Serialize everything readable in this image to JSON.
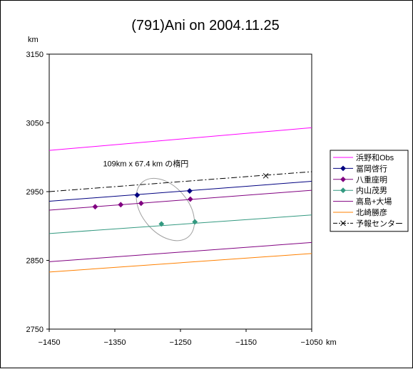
{
  "chart_data": {
    "type": "line",
    "title": "(791)Ani on 2004.11.25",
    "xlabel": "km",
    "ylabel": "km",
    "xlim": [
      -1450,
      -1050
    ],
    "ylim": [
      2750,
      3150
    ],
    "xticks": [
      -1450,
      -1350,
      -1250,
      -1150,
      -1050
    ],
    "yticks": [
      2750,
      2850,
      2950,
      3050,
      3150
    ],
    "xtick_labels": [
      "−1450",
      "−1350",
      "−1250",
      "−1150",
      "−1050"
    ],
    "ytick_labels": [
      "2750",
      "2850",
      "2950",
      "3050",
      "3150"
    ],
    "grid": false,
    "legend_position": "right",
    "annotation": "109km x 67.4 km の楕円",
    "ellipse": {
      "center": [
        -1273,
        2924
      ],
      "semi_axis_a_km": 54.5,
      "semi_axis_b_km": 33.7,
      "rotation_deg": -50,
      "color": "#a0a0a0"
    },
    "series": [
      {
        "name": "浜野和Obs",
        "color": "#ff00ff",
        "marker": "none",
        "style": "solid",
        "x": [
          -1450,
          -1050
        ],
        "y": [
          3010,
          3043
        ]
      },
      {
        "name": "冨岡啓行",
        "color": "#000080",
        "marker": "diamond",
        "style": "solid",
        "x": [
          -1450,
          -1050
        ],
        "y": [
          2936,
          2965
        ],
        "markers": [
          [
            -1316,
            2945
          ],
          [
            -1236,
            2951
          ]
        ]
      },
      {
        "name": "八重座明",
        "color": "#800080",
        "marker": "diamond",
        "style": "solid",
        "x": [
          -1450,
          -1050
        ],
        "y": [
          2923,
          2952
        ],
        "markers": [
          [
            -1380,
            2928
          ],
          [
            -1341,
            2931
          ],
          [
            -1310,
            2933
          ],
          [
            -1235,
            2939
          ]
        ]
      },
      {
        "name": "内山茂男",
        "color": "#339980",
        "marker": "diamond",
        "style": "solid",
        "x": [
          -1450,
          -1050
        ],
        "y": [
          2889,
          2916
        ],
        "markers": [
          [
            -1279,
            2903
          ],
          [
            -1228,
            2906
          ]
        ]
      },
      {
        "name": "高島+大場",
        "color": "#800080",
        "marker": "none",
        "style": "solid",
        "x": [
          -1450,
          -1050
        ],
        "y": [
          2848,
          2876
        ]
      },
      {
        "name": "北崎勝彦",
        "color": "#ff8000",
        "marker": "none",
        "style": "solid",
        "x": [
          -1450,
          -1050
        ],
        "y": [
          2833,
          2860
        ]
      },
      {
        "name": "予報センター",
        "color": "#000000",
        "marker": "x",
        "style": "dashdot",
        "x": [
          -1450,
          -1050
        ],
        "y": [
          2950,
          2979
        ],
        "markers": [
          [
            -1120,
            2973
          ]
        ]
      }
    ]
  }
}
